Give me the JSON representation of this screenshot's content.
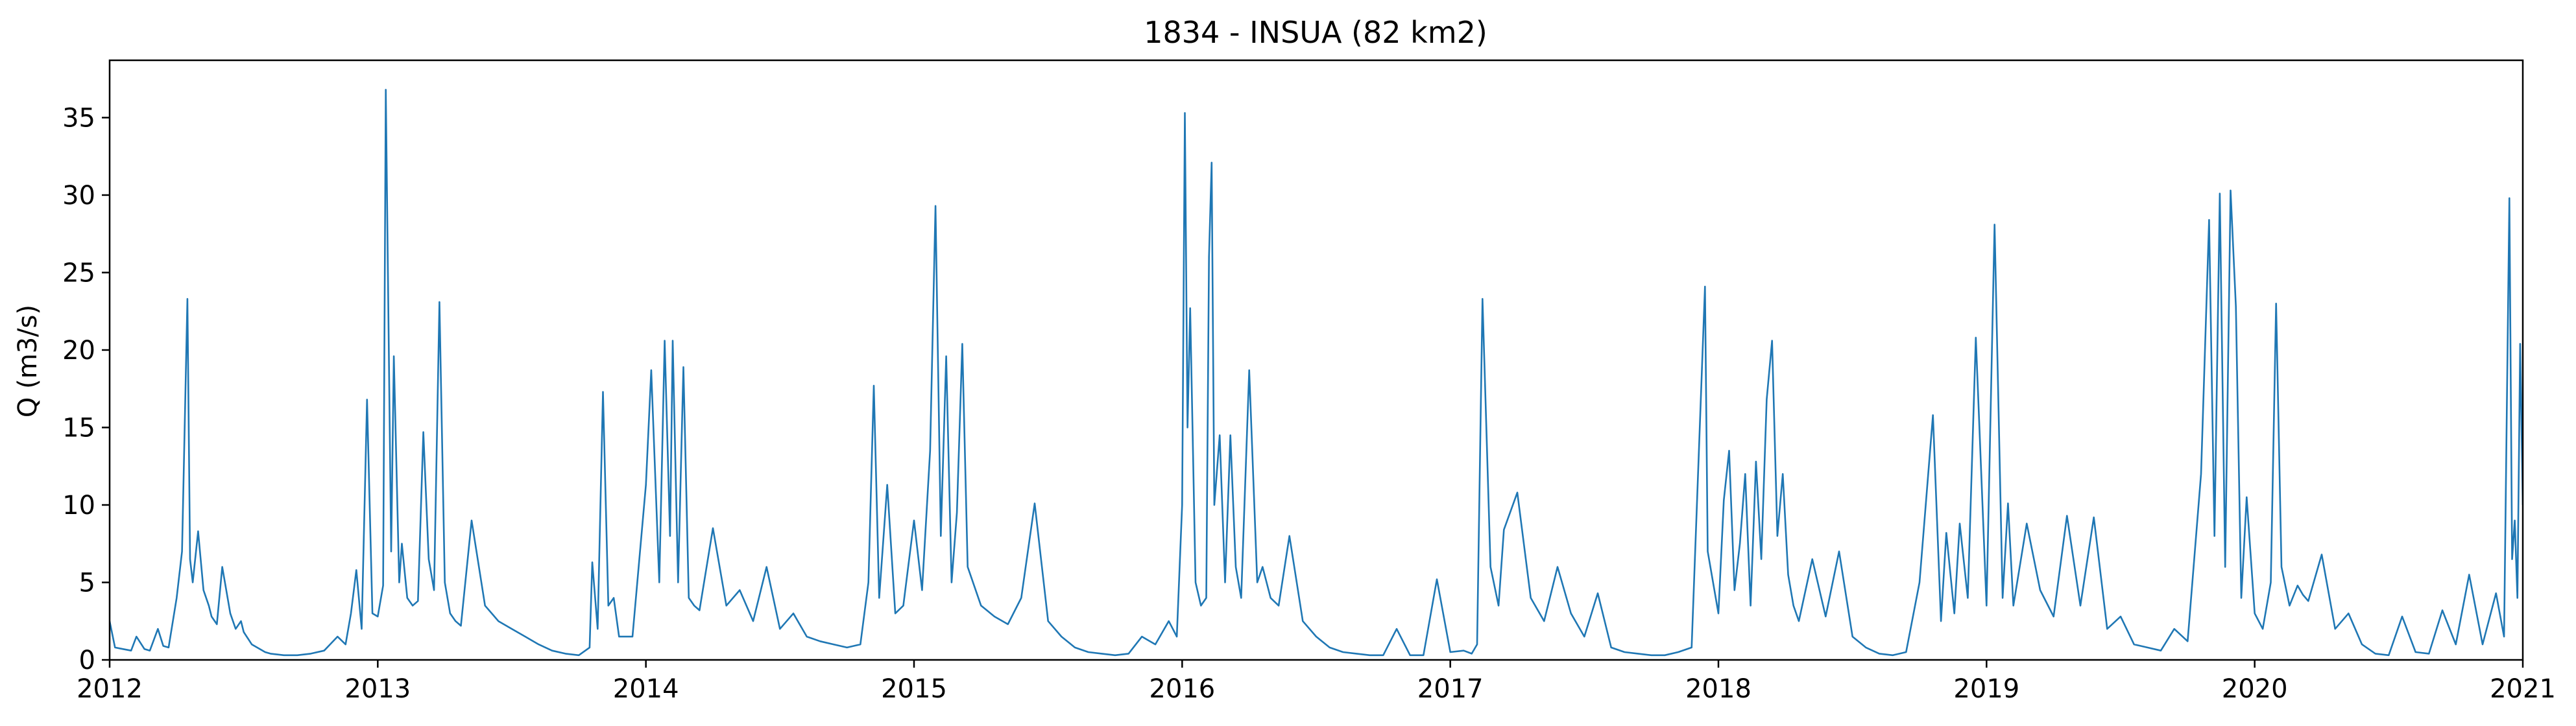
{
  "chart_data": {
    "type": "line",
    "title": "1834 - INSUA (82 km2)",
    "xlabel": "",
    "ylabel": "Q (m3/s)",
    "x_tick_labels": [
      "2012",
      "2013",
      "2014",
      "2015",
      "2016",
      "2017",
      "2018",
      "2019",
      "2020",
      "2021"
    ],
    "y_tick_labels": [
      "0",
      "5",
      "10",
      "15",
      "20",
      "25",
      "30",
      "35"
    ],
    "xlim": [
      2012.0,
      2021.0
    ],
    "ylim": [
      0,
      38.7
    ],
    "grid": false,
    "legend": "none",
    "line_color": "#1f77b4",
    "series": [
      {
        "x": [
          2012.0,
          2012.02,
          2012.05,
          2012.08,
          2012.1,
          2012.13,
          2012.15,
          2012.18,
          2012.2,
          2012.22,
          2012.25,
          2012.27,
          2012.29,
          2012.3,
          2012.31,
          2012.33,
          2012.35,
          2012.37,
          2012.38,
          2012.4,
          2012.42,
          2012.45,
          2012.47,
          2012.49,
          2012.5,
          2012.53,
          2012.56,
          2012.58,
          2012.6,
          2012.65,
          2012.7,
          2012.75,
          2012.8,
          2012.85,
          2012.88,
          2012.9,
          2012.92,
          2012.94,
          2012.96,
          2012.98,
          2013.0,
          2013.02,
          2013.03,
          2013.05,
          2013.06,
          2013.08,
          2013.09,
          2013.11,
          2013.13,
          2013.15,
          2013.17,
          2013.19,
          2013.21,
          2013.23,
          2013.25,
          2013.27,
          2013.29,
          2013.31,
          2013.35,
          2013.4,
          2013.45,
          2013.5,
          2013.55,
          2013.6,
          2013.65,
          2013.7,
          2013.75,
          2013.79,
          2013.8,
          2013.82,
          2013.84,
          2013.86,
          2013.88,
          2013.9,
          2013.95,
          2014.0,
          2014.02,
          2014.05,
          2014.07,
          2014.09,
          2014.1,
          2014.12,
          2014.14,
          2014.16,
          2014.18,
          2014.2,
          2014.25,
          2014.3,
          2014.35,
          2014.4,
          2014.45,
          2014.5,
          2014.55,
          2014.6,
          2014.65,
          2014.7,
          2014.75,
          2014.8,
          2014.83,
          2014.85,
          2014.87,
          2014.9,
          2014.93,
          2014.96,
          2015.0,
          2015.03,
          2015.06,
          2015.08,
          2015.1,
          2015.12,
          2015.14,
          2015.16,
          2015.18,
          2015.2,
          2015.25,
          2015.3,
          2015.35,
          2015.4,
          2015.45,
          2015.5,
          2015.55,
          2015.6,
          2015.65,
          2015.7,
          2015.75,
          2015.8,
          2015.85,
          2015.9,
          2015.95,
          2015.98,
          2016.0,
          2016.01,
          2016.02,
          2016.03,
          2016.05,
          2016.07,
          2016.09,
          2016.1,
          2016.11,
          2016.12,
          2016.14,
          2016.16,
          2016.18,
          2016.2,
          2016.22,
          2016.25,
          2016.28,
          2016.3,
          2016.33,
          2016.36,
          2016.4,
          2016.45,
          2016.5,
          2016.55,
          2016.6,
          2016.65,
          2016.7,
          2016.75,
          2016.8,
          2016.85,
          2016.9,
          2016.95,
          2017.0,
          2017.05,
          2017.08,
          2017.1,
          2017.12,
          2017.15,
          2017.18,
          2017.2,
          2017.25,
          2017.3,
          2017.35,
          2017.4,
          2017.45,
          2017.5,
          2017.55,
          2017.6,
          2017.65,
          2017.7,
          2017.75,
          2017.8,
          2017.85,
          2017.9,
          2017.95,
          2017.96,
          2018.0,
          2018.02,
          2018.04,
          2018.06,
          2018.08,
          2018.1,
          2018.12,
          2018.14,
          2018.16,
          2018.18,
          2018.2,
          2018.22,
          2018.24,
          2018.26,
          2018.28,
          2018.3,
          2018.35,
          2018.4,
          2018.45,
          2018.5,
          2018.55,
          2018.6,
          2018.65,
          2018.7,
          2018.75,
          2018.8,
          2018.83,
          2018.85,
          2018.88,
          2018.9,
          2018.93,
          2018.96,
          2019.0,
          2019.03,
          2019.06,
          2019.08,
          2019.1,
          2019.15,
          2019.2,
          2019.25,
          2019.3,
          2019.35,
          2019.4,
          2019.45,
          2019.5,
          2019.55,
          2019.6,
          2019.65,
          2019.7,
          2019.75,
          2019.8,
          2019.83,
          2019.85,
          2019.87,
          2019.89,
          2019.91,
          2019.93,
          2019.95,
          2019.97,
          2020.0,
          2020.03,
          2020.06,
          2020.08,
          2020.1,
          2020.13,
          2020.16,
          2020.18,
          2020.2,
          2020.25,
          2020.3,
          2020.35,
          2020.4,
          2020.45,
          2020.5,
          2020.55,
          2020.6,
          2020.65,
          2020.7,
          2020.75,
          2020.8,
          2020.85,
          2020.9,
          2020.93,
          2020.95,
          2020.96,
          2020.97,
          2020.98,
          2020.99,
          2021.0
        ],
        "y": [
          2.5,
          0.8,
          0.7,
          0.6,
          1.5,
          0.7,
          0.6,
          2.0,
          0.9,
          0.8,
          4.0,
          7.0,
          23.3,
          6.5,
          5.0,
          8.3,
          4.5,
          3.5,
          2.8,
          2.3,
          6.0,
          3.0,
          2.0,
          2.5,
          1.8,
          1.0,
          0.7,
          0.5,
          0.4,
          0.3,
          0.3,
          0.4,
          0.6,
          1.5,
          1.0,
          3.0,
          5.8,
          2.0,
          16.8,
          3.0,
          2.8,
          4.8,
          36.8,
          7.0,
          19.6,
          5.0,
          7.5,
          4.0,
          3.5,
          3.8,
          14.7,
          6.5,
          4.5,
          23.1,
          5.0,
          3.0,
          2.5,
          2.2,
          9.0,
          3.5,
          2.5,
          2.0,
          1.5,
          1.0,
          0.6,
          0.4,
          0.3,
          0.8,
          6.3,
          2.0,
          17.3,
          3.5,
          4.0,
          1.5,
          1.5,
          11.3,
          18.7,
          5.0,
          20.6,
          8.0,
          20.6,
          5.0,
          18.9,
          4.0,
          3.5,
          3.2,
          8.5,
          3.5,
          4.5,
          2.5,
          6.0,
          2.0,
          3.0,
          1.5,
          1.2,
          1.0,
          0.8,
          1.0,
          5.0,
          17.7,
          4.0,
          11.3,
          3.0,
          3.5,
          9.0,
          4.5,
          13.5,
          29.3,
          8.0,
          19.6,
          5.0,
          9.5,
          20.4,
          6.0,
          3.5,
          2.8,
          2.3,
          4.0,
          10.1,
          2.5,
          1.5,
          0.8,
          0.5,
          0.4,
          0.3,
          0.4,
          1.5,
          1.0,
          2.5,
          1.5,
          10.0,
          35.3,
          15.0,
          22.7,
          5.0,
          3.5,
          4.0,
          26.0,
          32.1,
          10.0,
          14.5,
          5.0,
          14.5,
          6.0,
          4.0,
          18.7,
          5.0,
          6.0,
          4.0,
          3.5,
          8.0,
          2.5,
          1.5,
          0.8,
          0.5,
          0.4,
          0.3,
          0.3,
          2.0,
          0.3,
          0.3,
          5.2,
          0.5,
          0.6,
          0.4,
          1.0,
          23.3,
          6.0,
          3.5,
          8.4,
          10.8,
          4.0,
          2.5,
          6.0,
          3.0,
          1.5,
          4.3,
          0.8,
          0.5,
          0.4,
          0.3,
          0.3,
          0.5,
          0.8,
          24.1,
          7.0,
          3.0,
          10.3,
          13.5,
          4.5,
          7.5,
          12.0,
          3.5,
          12.8,
          6.5,
          16.8,
          20.6,
          8.0,
          12.0,
          5.5,
          3.5,
          2.5,
          6.5,
          2.8,
          7.0,
          1.5,
          0.8,
          0.4,
          0.3,
          0.5,
          5.0,
          15.8,
          2.5,
          8.2,
          3.0,
          8.8,
          4.0,
          20.8,
          3.5,
          28.1,
          4.0,
          10.1,
          3.5,
          8.8,
          4.5,
          2.8,
          9.3,
          3.5,
          9.2,
          2.0,
          2.8,
          1.0,
          0.8,
          0.6,
          2.0,
          1.2,
          12.0,
          28.4,
          8.0,
          30.1,
          6.0,
          30.3,
          22.8,
          4.0,
          10.5,
          3.0,
          2.0,
          5.0,
          23.0,
          6.0,
          3.5,
          4.8,
          4.2,
          3.8,
          6.8,
          2.0,
          3.0,
          1.0,
          0.4,
          0.3,
          2.8,
          0.5,
          0.4,
          3.2,
          1.0,
          5.5,
          1.0,
          4.3,
          1.5,
          29.8,
          6.5,
          9.0,
          4.0,
          20.4,
          10.0
        ]
      }
    ]
  }
}
